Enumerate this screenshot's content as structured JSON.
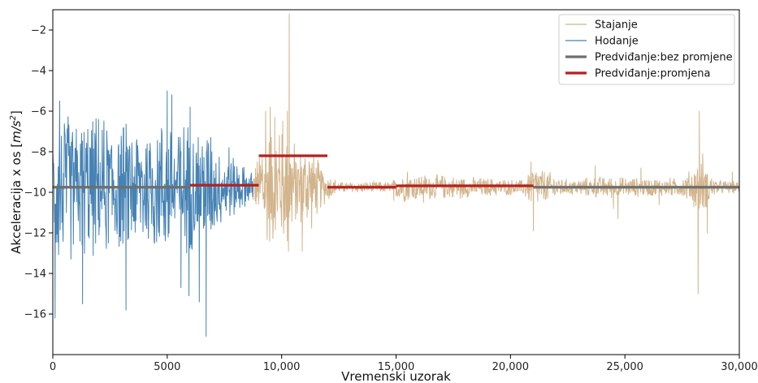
{
  "chart_data": {
    "type": "line",
    "title": "",
    "xlabel": "Vremenski uzorak",
    "ylabel_prefix": "Akceleracija x os [",
    "ylabel_unit": "m/s",
    "ylabel_exp": "2",
    "ylabel_suffix": "]",
    "xlim": [
      0,
      30000
    ],
    "ylim": [
      -18,
      -1
    ],
    "grid": false,
    "legend_position": "top-right",
    "x_ticks": [
      0,
      5000,
      10000,
      15000,
      20000,
      25000,
      30000
    ],
    "x_tick_labels": [
      "0",
      "5000",
      "10,000",
      "15,000",
      "20,000",
      "25,000",
      "30,000"
    ],
    "y_ticks": [
      -2,
      -4,
      -6,
      -8,
      -10,
      -12,
      -14,
      -16
    ],
    "y_tick_labels": [
      "−2",
      "−4",
      "−6",
      "−8",
      "−10",
      "−12",
      "−14",
      "−16"
    ],
    "series": [
      {
        "name": "Stajanje",
        "color": "#d2b48c",
        "style": "thin",
        "segments": [
          {
            "x_start": 8700,
            "x_end": 30000,
            "baseline": -9.75,
            "envelope": [
              [
                8700,
                0.8
              ],
              [
                9000,
                1.8
              ],
              [
                9200,
                3.5
              ],
              [
                9800,
                3.0
              ],
              [
                10300,
                3.5
              ],
              [
                10700,
                2.0
              ],
              [
                11200,
                2.5
              ],
              [
                11800,
                1.0
              ],
              [
                12500,
                0.3
              ],
              [
                14800,
                0.3
              ],
              [
                15200,
                0.8
              ],
              [
                17500,
                0.6
              ],
              [
                19000,
                0.5
              ],
              [
                20500,
                0.4
              ],
              [
                21000,
                1.2
              ],
              [
                22500,
                0.4
              ],
              [
                24000,
                0.6
              ],
              [
                25500,
                0.5
              ],
              [
                27500,
                0.5
              ],
              [
                28300,
                1.5
              ],
              [
                29000,
                0.4
              ],
              [
                30000,
                0.3
              ]
            ],
            "spikes": [
              {
                "x": 9150,
                "y": -8.3
              },
              {
                "x": 9300,
                "y": -6.0
              },
              {
                "x": 9500,
                "y": -5.8
              },
              {
                "x": 9700,
                "y": -6.3
              },
              {
                "x": 9900,
                "y": -7.2
              },
              {
                "x": 10050,
                "y": -6.5
              },
              {
                "x": 10250,
                "y": -6.0
              },
              {
                "x": 10300,
                "y": -12.9
              },
              {
                "x": 10330,
                "y": -1.2
              },
              {
                "x": 10450,
                "y": -10.8
              },
              {
                "x": 10700,
                "y": -9.0
              },
              {
                "x": 10900,
                "y": -12.9
              },
              {
                "x": 11200,
                "y": -8.5
              },
              {
                "x": 11600,
                "y": -9.3
              },
              {
                "x": 12300,
                "y": -9.9
              },
              {
                "x": 14900,
                "y": -10.4
              },
              {
                "x": 15500,
                "y": -9.0
              },
              {
                "x": 16200,
                "y": -10.5
              },
              {
                "x": 17000,
                "y": -9.2
              },
              {
                "x": 17800,
                "y": -10.3
              },
              {
                "x": 20900,
                "y": -8.5
              },
              {
                "x": 21000,
                "y": -11.9
              },
              {
                "x": 21200,
                "y": -9.2
              },
              {
                "x": 23700,
                "y": -8.7
              },
              {
                "x": 24500,
                "y": -10.8
              },
              {
                "x": 24700,
                "y": -11.3
              },
              {
                "x": 25700,
                "y": -8.8
              },
              {
                "x": 26500,
                "y": -10.6
              },
              {
                "x": 28200,
                "y": -15.0
              },
              {
                "x": 28250,
                "y": -6.0
              },
              {
                "x": 28400,
                "y": -8.1
              },
              {
                "x": 28600,
                "y": -12.0
              },
              {
                "x": 29700,
                "y": -9.0
              }
            ]
          }
        ]
      },
      {
        "name": "Hodanje",
        "color": "#4682b4",
        "style": "thin",
        "segments": [
          {
            "x_start": 0,
            "x_end": 8750,
            "baseline": -9.75,
            "envelope": [
              [
                0,
                3.0
              ],
              [
                200,
                4.5
              ],
              [
                1000,
                3.8
              ],
              [
                2000,
                3.8
              ],
              [
                3000,
                3.5
              ],
              [
                4000,
                3.5
              ],
              [
                5000,
                3.8
              ],
              [
                6000,
                3.5
              ],
              [
                6800,
                3.2
              ],
              [
                7300,
                2.0
              ],
              [
                7800,
                1.8
              ],
              [
                8300,
                1.2
              ],
              [
                8750,
                0.8
              ]
            ],
            "spikes": [
              {
                "x": 100,
                "y": -16.2
              },
              {
                "x": 300,
                "y": -5.5
              },
              {
                "x": 1300,
                "y": -15.5
              },
              {
                "x": 3200,
                "y": -15.8
              },
              {
                "x": 5000,
                "y": -5.0
              },
              {
                "x": 5200,
                "y": -5.2
              },
              {
                "x": 5600,
                "y": -14.7
              },
              {
                "x": 5950,
                "y": -15.1
              },
              {
                "x": 6000,
                "y": -5.8
              },
              {
                "x": 6400,
                "y": -15.4
              },
              {
                "x": 6700,
                "y": -17.1
              },
              {
                "x": 6900,
                "y": -7.3
              },
              {
                "x": 7700,
                "y": -7.8
              }
            ]
          }
        ]
      },
      {
        "name": "Predviđanje:bez promjene",
        "color": "#6e6e6e",
        "style": "thick",
        "segments": [
          {
            "x_start": 0,
            "x_end": 6000,
            "y": -9.75
          },
          {
            "x_start": 21000,
            "x_end": 30000,
            "y": -9.75
          }
        ]
      },
      {
        "name": "Predviđanje:promjena",
        "color": "#b22222",
        "style": "thick",
        "segments": [
          {
            "x_start": 6000,
            "x_end": 9000,
            "y": -9.65
          },
          {
            "x_start": 9000,
            "x_end": 12000,
            "y": -8.2
          },
          {
            "x_start": 12000,
            "x_end": 15000,
            "y": -9.75
          },
          {
            "x_start": 15000,
            "x_end": 21000,
            "y": -9.68
          }
        ]
      }
    ]
  }
}
